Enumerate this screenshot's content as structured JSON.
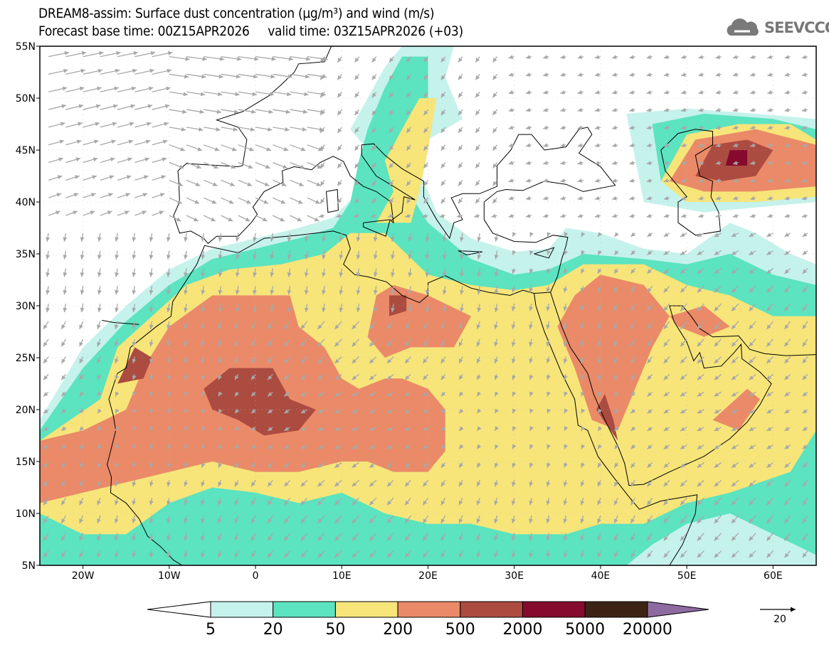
{
  "header": {
    "title_line1": "DREAM8-assim: Surface dust concentration (µg/m³) and wind (m/s)",
    "title_line2": "Forecast base time: 00Z15APR2026     valid time: 03Z15APR2026 (+03)"
  },
  "logo": {
    "text": "SEEVCCC",
    "icon": "cloud-icon"
  },
  "map": {
    "lon_range": [
      -25,
      65
    ],
    "lat_range": [
      5,
      55
    ],
    "lat_labels": [
      "5N",
      "10N",
      "15N",
      "20N",
      "25N",
      "30N",
      "35N",
      "40N",
      "45N",
      "50N",
      "55N"
    ],
    "lat_values": [
      5,
      10,
      15,
      20,
      25,
      30,
      35,
      40,
      45,
      50,
      55
    ],
    "lon_labels": [
      "20W",
      "10W",
      "0",
      "10E",
      "20E",
      "30E",
      "40E",
      "50E",
      "60E"
    ],
    "lon_values": [
      -20,
      -10,
      0,
      10,
      20,
      30,
      40,
      50,
      60
    ]
  },
  "colorbar": {
    "levels": [
      "5",
      "20",
      "50",
      "200",
      "500",
      "2000",
      "5000",
      "20000"
    ],
    "colors": [
      "#c6f2ec",
      "#5ce3bf",
      "#f7e57a",
      "#ea8a68",
      "#ac4b40",
      "#850a2e",
      "#3c2415"
    ],
    "under_color": "#ffffff",
    "over_color": "#8d6aa0"
  },
  "wind_reference": {
    "label": "20"
  },
  "colors": {
    "wind_arrow": "#a8a8a8",
    "coast": "#000000"
  }
}
